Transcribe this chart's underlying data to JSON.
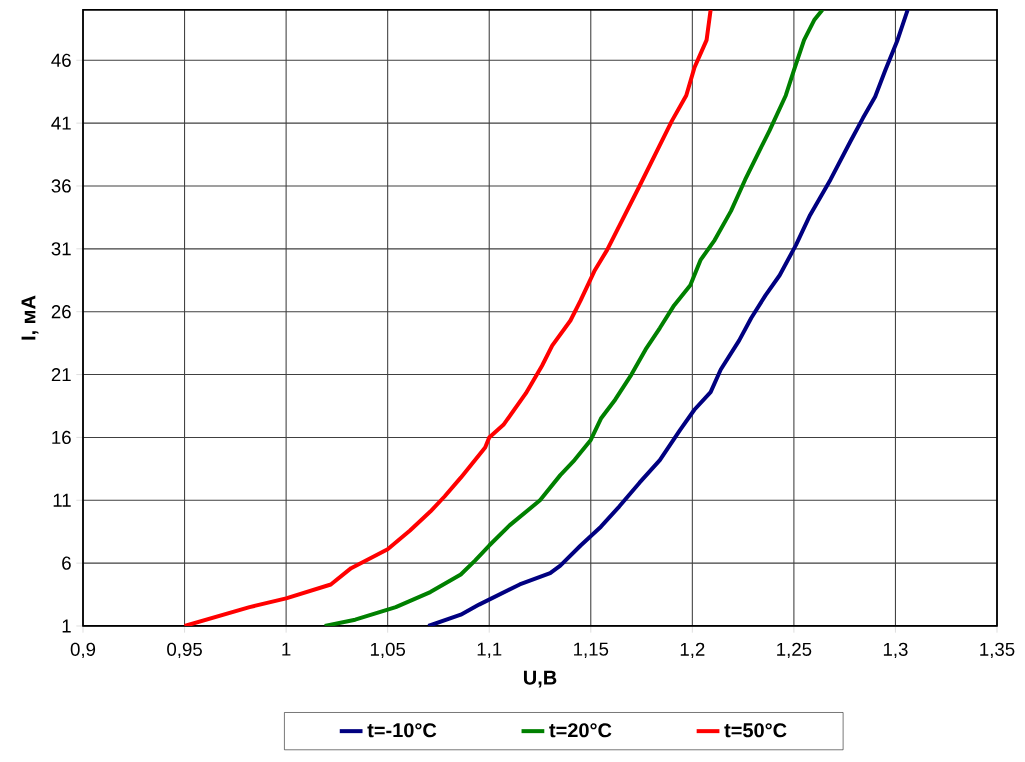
{
  "chart_data": {
    "type": "line",
    "xlabel": "U,В",
    "ylabel": "I, мА",
    "xlim": [
      0.9,
      1.35
    ],
    "ylim": [
      1,
      50
    ],
    "xticks": [
      {
        "value": 0.9,
        "label": "0,9"
      },
      {
        "value": 0.95,
        "label": "0,95"
      },
      1,
      {
        "value": 1.05,
        "label": "1,05"
      },
      {
        "value": 1.1,
        "label": "1,1"
      },
      {
        "value": 1.15,
        "label": "1,15"
      },
      {
        "value": 1.2,
        "label": "1,2"
      },
      {
        "value": 1.25,
        "label": "1,25"
      },
      {
        "value": 1.3,
        "label": "1,3"
      },
      {
        "value": 1.35,
        "label": "1,35"
      }
    ],
    "yticks": [
      1,
      6,
      11,
      16,
      21,
      26,
      31,
      36,
      41,
      46
    ],
    "grid": true,
    "legend": "bottom",
    "marker": "none",
    "line_style": "solid",
    "series": [
      {
        "name": "t=-10°C",
        "color": "#000080",
        "x": [
          1.07,
          1.086,
          1.095,
          1.115,
          1.13,
          1.135,
          1.145,
          1.155,
          1.164,
          1.174,
          1.184,
          1.194,
          1.201,
          1.209,
          1.214,
          1.223,
          1.229,
          1.236,
          1.243,
          1.251,
          1.258,
          1.268,
          1.278,
          1.284,
          1.29,
          1.295,
          1.301,
          1.306
        ],
        "values": [
          1,
          1.9,
          2.7,
          4.3,
          5.2,
          5.8,
          7.4,
          8.9,
          10.5,
          12.4,
          14.2,
          16.6,
          18.2,
          19.6,
          21.4,
          23.7,
          25.5,
          27.3,
          28.9,
          31.3,
          33.7,
          36.5,
          39.6,
          41.4,
          43.1,
          45.2,
          47.6,
          50
        ]
      },
      {
        "name": "t=20°C",
        "color": "#008000",
        "x": [
          1.019,
          1.034,
          1.054,
          1.071,
          1.086,
          1.093,
          1.1,
          1.11,
          1.125,
          1.135,
          1.142,
          1.15,
          1.155,
          1.162,
          1.17,
          1.177,
          1.184,
          1.191,
          1.199,
          1.204,
          1.211,
          1.219,
          1.226,
          1.233,
          1.238,
          1.246,
          1.25,
          1.255,
          1.26,
          1.264
        ],
        "values": [
          1,
          1.5,
          2.5,
          3.7,
          5.1,
          6.2,
          7.4,
          9,
          11,
          13,
          14.2,
          15.8,
          17.5,
          19,
          21,
          23,
          24.7,
          26.5,
          28.1,
          30.1,
          31.7,
          34,
          36.5,
          38.8,
          40.4,
          43.2,
          45.2,
          47.6,
          49.2,
          50
        ]
      },
      {
        "name": "t=50°C",
        "color": "#ff0000",
        "x": [
          0.95,
          0.982,
          1.0,
          1.022,
          1.032,
          1.05,
          1.061,
          1.071,
          1.078,
          1.086,
          1.098,
          1.1,
          1.107,
          1.118,
          1.126,
          1.131,
          1.14,
          1.145,
          1.152,
          1.158,
          1.174,
          1.19,
          1.197,
          1.201,
          1.207,
          1.209
        ],
        "values": [
          1,
          2.5,
          3.2,
          4.3,
          5.6,
          7.1,
          8.6,
          10.1,
          11.3,
          12.8,
          15.2,
          16,
          17,
          19.5,
          21.7,
          23.3,
          25.3,
          26.9,
          29.3,
          30.9,
          36,
          41.2,
          43.2,
          45.4,
          47.6,
          50
        ]
      }
    ]
  }
}
